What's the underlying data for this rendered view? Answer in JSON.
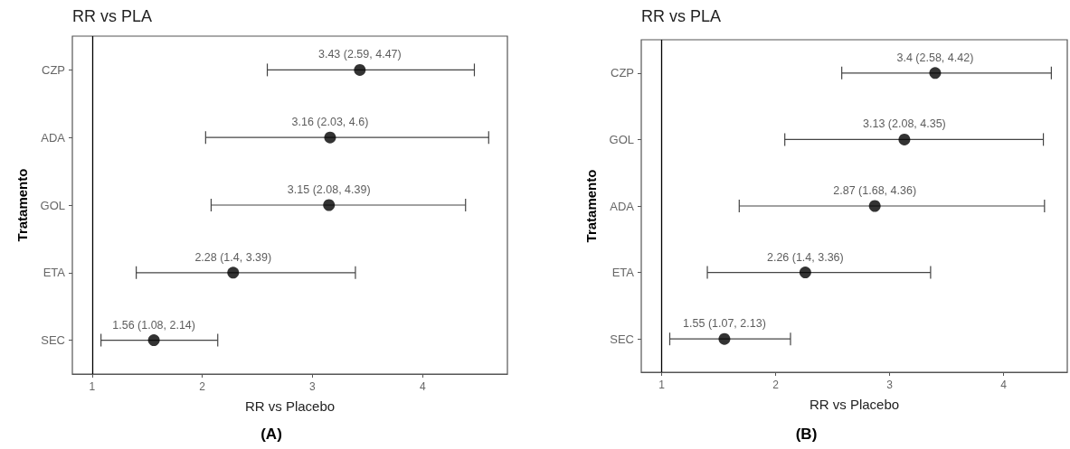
{
  "chart_data": [
    {
      "type": "scatter",
      "orientation": "horizontal",
      "title": "RR vs PLA",
      "xlabel": "RR vs Placebo",
      "ylabel": "Tratamento",
      "annotations": [
        "(A)"
      ],
      "categories": [
        "CZP",
        "ADA",
        "GOL",
        "ETA",
        "SEC"
      ],
      "values": [
        3.43,
        3.16,
        3.15,
        2.28,
        1.56
      ],
      "errors": [
        [
          2.59,
          4.47
        ],
        [
          2.03,
          4.6
        ],
        [
          2.08,
          4.39
        ],
        [
          1.4,
          3.39
        ],
        [
          1.08,
          2.14
        ]
      ],
      "value_labels": [
        "3.43 (2.59, 4.47)",
        "3.16 (2.03, 4.6)",
        "3.15 (2.08, 4.39)",
        "2.28 (1.4, 3.39)",
        "1.56 (1.08, 2.14)"
      ],
      "color": "#000000",
      "marker": "circle",
      "xlim": [
        0.82,
        4.77
      ],
      "xticks": [
        1,
        2,
        3,
        4
      ],
      "ref_lines": [
        {
          "axis": "x",
          "value": 1,
          "color": "#000000"
        }
      ],
      "grid": false
    },
    {
      "type": "scatter",
      "orientation": "horizontal",
      "title": "RR vs PLA",
      "xlabel": "RR vs Placebo",
      "ylabel": "Tratamento",
      "annotations": [
        "(B)"
      ],
      "categories": [
        "CZP",
        "GOL",
        "ADA",
        "ETA",
        "SEC"
      ],
      "values": [
        3.4,
        3.13,
        2.87,
        2.26,
        1.55
      ],
      "errors": [
        [
          2.58,
          4.42
        ],
        [
          2.08,
          4.35
        ],
        [
          1.68,
          4.36
        ],
        [
          1.4,
          3.36
        ],
        [
          1.07,
          2.13
        ]
      ],
      "value_labels": [
        "3.4 (2.58, 4.42)",
        "3.13 (2.08, 4.35)",
        "2.87 (1.68, 4.36)",
        "2.26 (1.4, 3.36)",
        "1.55 (1.07, 2.13)"
      ],
      "color": "#000000",
      "marker": "circle",
      "xlim": [
        0.82,
        4.56
      ],
      "xticks": [
        1,
        2,
        3,
        4
      ],
      "ref_lines": [
        {
          "axis": "x",
          "value": 1,
          "color": "#000000"
        }
      ],
      "grid": false
    }
  ]
}
